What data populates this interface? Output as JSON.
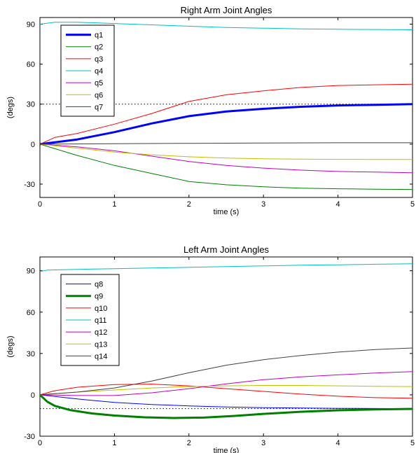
{
  "chart_data": [
    {
      "type": "line",
      "title": "Right Arm Joint Angles",
      "xlabel": "time (s)",
      "ylabel": "(degs)",
      "xlim": [
        0,
        5
      ],
      "ylim": [
        -40,
        95
      ],
      "xticks": [
        0,
        1,
        2,
        3,
        4,
        5
      ],
      "yticks": [
        -30,
        0,
        30,
        60,
        90
      ],
      "grid": false,
      "legend_position": "top-left",
      "reference_line": {
        "y": 30,
        "style": "dotted"
      },
      "series": [
        {
          "name": "q1",
          "color": "#0000ff",
          "bold": true,
          "x": [
            0,
            0.5,
            1.0,
            1.5,
            2.0,
            2.5,
            3.0,
            3.5,
            4.0,
            4.5,
            5.0
          ],
          "y": [
            0,
            3.5,
            9,
            15.5,
            21,
            24.5,
            26.5,
            28,
            29,
            29.5,
            30
          ]
        },
        {
          "name": "q2",
          "color": "#008000",
          "bold": false,
          "x": [
            0,
            0.5,
            1.0,
            1.5,
            2.0,
            2.5,
            3.0,
            3.5,
            4.0,
            4.5,
            5.0
          ],
          "y": [
            0,
            -8.5,
            -16,
            -22,
            -28,
            -30.5,
            -32,
            -33,
            -33.5,
            -33.8,
            -34
          ]
        },
        {
          "name": "q3",
          "color": "#ff0000",
          "bold": false,
          "x": [
            0,
            0.2,
            0.5,
            1.0,
            1.5,
            2.0,
            2.5,
            3.0,
            3.5,
            4.0,
            4.5,
            5.0
          ],
          "y": [
            0,
            5,
            8,
            15,
            23,
            32,
            37,
            40,
            42.5,
            44,
            44.5,
            45
          ]
        },
        {
          "name": "q4",
          "color": "#00bfbf",
          "bold": false,
          "x": [
            0,
            0.2,
            0.5,
            1.0,
            1.5,
            2.0,
            2.5,
            3.0,
            3.5,
            4.0,
            4.5,
            5.0
          ],
          "y": [
            90,
            91.5,
            91.5,
            90.5,
            89.5,
            88.5,
            87.5,
            87,
            86.5,
            86.2,
            86,
            85.8
          ]
        },
        {
          "name": "q5",
          "color": "#bf00bf",
          "bold": false,
          "x": [
            0,
            0.5,
            1.0,
            1.5,
            2.0,
            2.5,
            3.0,
            3.5,
            4.0,
            4.5,
            5.0
          ],
          "y": [
            0,
            -2,
            -5,
            -9,
            -13,
            -16,
            -18,
            -19.5,
            -20.5,
            -21,
            -21.5
          ]
        },
        {
          "name": "q6",
          "color": "#bfbf00",
          "bold": false,
          "x": [
            0,
            0.5,
            1.0,
            1.5,
            2.0,
            2.5,
            3.0,
            3.5,
            4.0,
            4.5,
            5.0
          ],
          "y": [
            0,
            -3,
            -6,
            -8,
            -9.5,
            -10.5,
            -11,
            -11.2,
            -11.4,
            -11.5,
            -11.5
          ]
        },
        {
          "name": "q7",
          "color": "#404040",
          "bold": false,
          "x": [
            0,
            1.0,
            2.0,
            3.0,
            4.0,
            5.0
          ],
          "y": [
            0,
            0.3,
            0.6,
            0.8,
            1.0,
            1.0
          ]
        }
      ]
    },
    {
      "type": "line",
      "title": "Left Arm Joint Angles",
      "xlabel": "time (s)",
      "ylabel": "(degs)",
      "xlim": [
        0,
        5
      ],
      "ylim": [
        -30,
        100
      ],
      "xticks": [
        0,
        1,
        2,
        3,
        4,
        5
      ],
      "yticks": [
        -30,
        0,
        30,
        60,
        90
      ],
      "grid": false,
      "legend_position": "top-left",
      "reference_line": {
        "y": -10,
        "style": "dotted"
      },
      "series": [
        {
          "name": "q8",
          "color": "#0000ff",
          "bold": false,
          "x": [
            0,
            0.5,
            1.0,
            1.5,
            2.0,
            2.5,
            3.0,
            3.5,
            4.0,
            4.5,
            5.0
          ],
          "y": [
            0,
            -3,
            -5.5,
            -7,
            -8,
            -8.8,
            -9.3,
            -9.6,
            -9.8,
            -9.9,
            -10
          ]
        },
        {
          "name": "q9",
          "color": "#008000",
          "bold": true,
          "x": [
            0,
            0.1,
            0.2,
            0.4,
            0.7,
            1.0,
            1.4,
            1.8,
            2.2,
            2.6,
            3.0,
            3.5,
            4.0,
            4.5,
            5.0
          ],
          "y": [
            0,
            -5,
            -8,
            -11,
            -13.5,
            -15,
            -16.3,
            -16.8,
            -16.5,
            -15.3,
            -13.8,
            -12.3,
            -11.2,
            -10.6,
            -10.2
          ]
        },
        {
          "name": "q10",
          "color": "#ff0000",
          "bold": false,
          "x": [
            0,
            0.2,
            0.5,
            1.0,
            1.5,
            2.0,
            2.5,
            3.0,
            3.5,
            4.0,
            4.5,
            5.0
          ],
          "y": [
            0,
            3,
            5.5,
            7.5,
            7.8,
            6.5,
            4.5,
            2.5,
            0.5,
            -1,
            -2,
            -2.5
          ]
        },
        {
          "name": "q11",
          "color": "#00bfbf",
          "bold": false,
          "x": [
            0,
            0.1,
            0.5,
            1.0,
            1.5,
            2.0,
            2.5,
            3.0,
            3.5,
            4.0,
            4.5,
            5.0
          ],
          "y": [
            89.5,
            90.5,
            91,
            91.5,
            92,
            92.5,
            93,
            93.5,
            94,
            94.3,
            94.7,
            95
          ]
        },
        {
          "name": "q12",
          "color": "#bf00bf",
          "bold": false,
          "x": [
            0,
            0.5,
            1.0,
            1.5,
            2.0,
            2.5,
            3.0,
            3.5,
            4.0,
            4.5,
            5.0
          ],
          "y": [
            0,
            -0.5,
            -0.5,
            1.5,
            4.5,
            8,
            11,
            13,
            14.5,
            15.8,
            16.8
          ]
        },
        {
          "name": "q13",
          "color": "#bfbf00",
          "bold": false,
          "x": [
            0,
            0.5,
            1.0,
            1.5,
            2.0,
            2.5,
            3.0,
            3.5,
            4.0,
            4.5,
            5.0
          ],
          "y": [
            0,
            2,
            3.5,
            5,
            6,
            6.5,
            6.8,
            6.8,
            6.5,
            6.2,
            6
          ]
        },
        {
          "name": "q14",
          "color": "#404040",
          "bold": false,
          "x": [
            0,
            0.5,
            1.0,
            1.5,
            2.0,
            2.5,
            3.0,
            3.5,
            4.0,
            4.5,
            5.0
          ],
          "y": [
            0,
            2,
            5,
            10,
            16,
            21.5,
            25.5,
            28.5,
            31,
            32.8,
            34
          ]
        }
      ]
    }
  ]
}
